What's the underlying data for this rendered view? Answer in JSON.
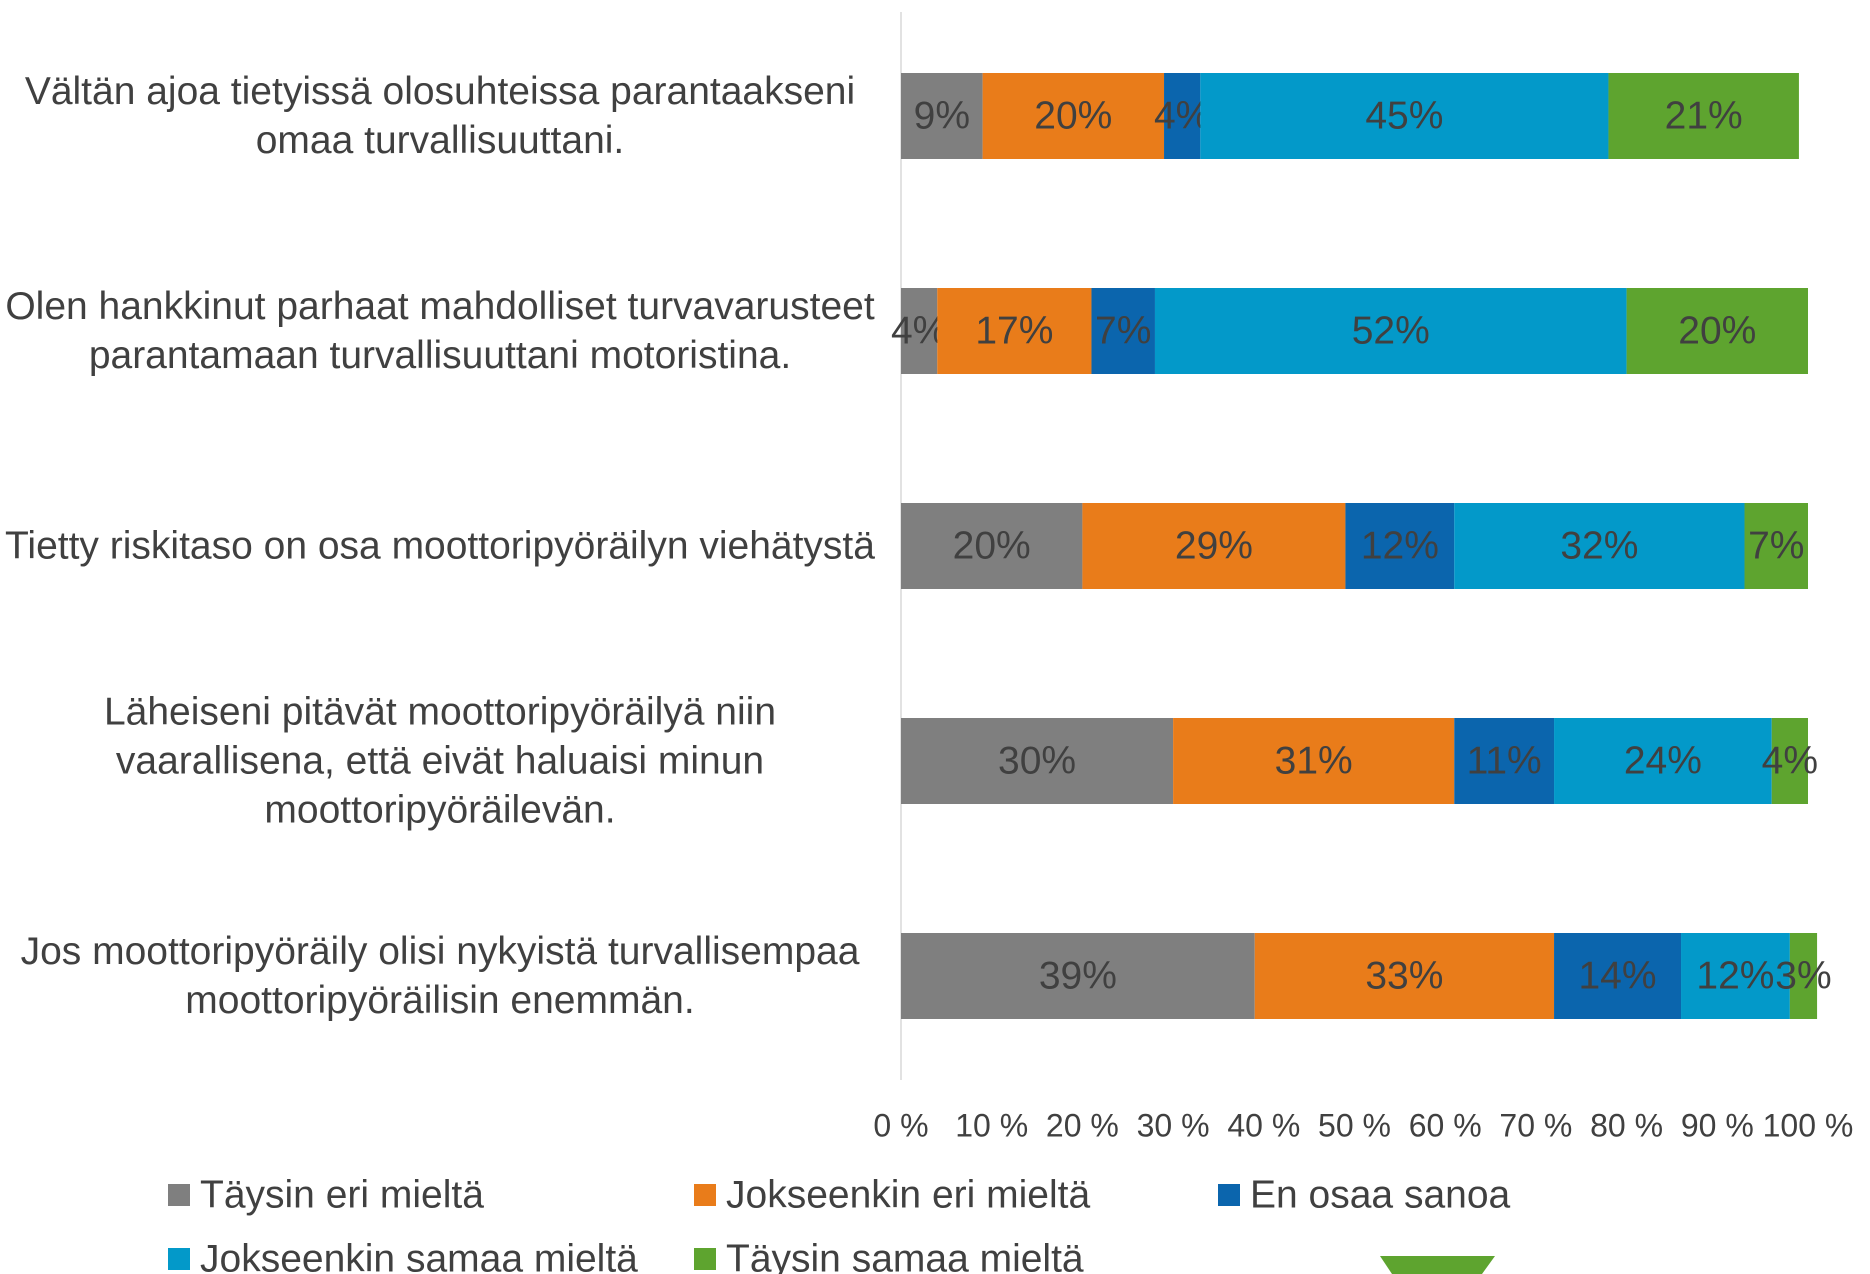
{
  "chart_data": {
    "type": "stacked_barh",
    "categories": [
      "Vältän ajoa tietyissä olosuhteissa parantaakseni omaa turvallisuuttani.",
      "Olen hankkinut parhaat mahdolliset turvavarusteet parantamaan turvallisuuttani motoristina.",
      "Tietty riskitaso on osa moottoripyöräilyn viehätystä",
      "Läheiseni pitävät moottoripyöräilyä niin vaarallisena, että eivät haluaisi minun moottoripyöräilevän.",
      "Jos moottoripyöräily olisi nykyistä turvallisempaa moottoripyöräilisin enemmän."
    ],
    "series": [
      {
        "name": "Täysin eri mieltä",
        "color": "#7f7f7f",
        "values": [
          9,
          4,
          20,
          30,
          39
        ],
        "value_labels": [
          "9%",
          "4%",
          "20%",
          "30%",
          "39%"
        ]
      },
      {
        "name": "Jokseenkin eri mieltä",
        "color": "#e97c1a",
        "values": [
          20,
          17,
          29,
          31,
          33
        ],
        "value_labels": [
          "20%",
          "17%",
          "29%",
          "31%",
          "33%"
        ]
      },
      {
        "name": "En osaa sanoa",
        "color": "#0b65ad",
        "values": [
          4,
          7,
          12,
          11,
          14
        ],
        "value_labels": [
          "4%",
          "7%",
          "12%",
          "11%",
          "14%"
        ]
      },
      {
        "name": "Jokseenkin samaa mieltä",
        "color": "#0399c9",
        "values": [
          45,
          52,
          32,
          24,
          12
        ],
        "value_labels": [
          "45%",
          "52%",
          "32%",
          "24%",
          "12%"
        ]
      },
      {
        "name": "Täysin samaa mieltä",
        "color": "#5ea42f",
        "values": [
          21,
          20,
          7,
          4,
          3
        ],
        "value_labels": [
          "21%",
          "20%",
          "7%",
          "4%",
          "3%"
        ]
      }
    ],
    "xlim": [
      0,
      100
    ],
    "xticks": [
      {
        "value": 0,
        "label": "0 %"
      },
      {
        "value": 10,
        "label": "10 %"
      },
      {
        "value": 20,
        "label": "20 %"
      },
      {
        "value": 30,
        "label": "30 %"
      },
      {
        "value": 40,
        "label": "40 %"
      },
      {
        "value": 50,
        "label": "50 %"
      },
      {
        "value": 60,
        "label": "60 %"
      },
      {
        "value": 70,
        "label": "70 %"
      },
      {
        "value": 80,
        "label": "80 %"
      },
      {
        "value": 90,
        "label": "90 %"
      },
      {
        "value": 100,
        "label": "100 %"
      }
    ],
    "legend": "bottom"
  }
}
